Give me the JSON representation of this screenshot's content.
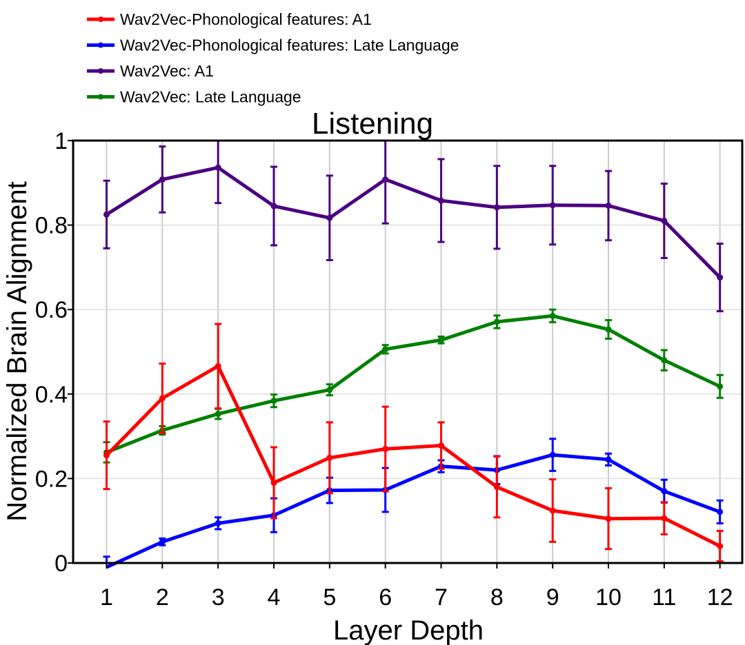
{
  "chart_data": {
    "type": "line",
    "title": "Listening",
    "xlabel": "Layer Depth",
    "ylabel": "Normalized Brain Alignment",
    "x": [
      1,
      2,
      3,
      4,
      5,
      6,
      7,
      8,
      9,
      10,
      11,
      12
    ],
    "xticks": [
      "1",
      "2",
      "3",
      "4",
      "5",
      "6",
      "7",
      "8",
      "9",
      "10",
      "11",
      "12"
    ],
    "yticks": [
      "0",
      "0.2",
      "0.4",
      "0.6",
      "0.8",
      "1"
    ],
    "ylim": [
      0,
      1
    ],
    "xlim": [
      0.4,
      12.4
    ],
    "grid": "vertical",
    "legend_position": "top-left",
    "series": [
      {
        "name": "Wav2Vec-Phonological features: A1",
        "color": "#ff0000",
        "values": [
          0.255,
          0.39,
          0.466,
          0.19,
          0.249,
          0.27,
          0.278,
          0.18,
          0.124,
          0.105,
          0.106,
          0.04
        ],
        "errors": [
          0.08,
          0.082,
          0.1,
          0.084,
          0.084,
          0.1,
          0.055,
          0.072,
          0.074,
          0.072,
          0.038,
          0.036
        ]
      },
      {
        "name": "Wav2Vec-Phonological features: Late Language",
        "color": "#0000ff",
        "values": [
          -0.01,
          0.05,
          0.094,
          0.113,
          0.172,
          0.173,
          0.229,
          0.22,
          0.256,
          0.245,
          0.17,
          0.121
        ],
        "errors": [
          0.025,
          0.008,
          0.014,
          0.04,
          0.03,
          0.052,
          0.014,
          0.033,
          0.038,
          0.014,
          0.027,
          0.027
        ]
      },
      {
        "name": "Wav2Vec: A1",
        "color": "#4b0082",
        "values": [
          0.825,
          0.908,
          0.936,
          0.845,
          0.817,
          0.908,
          0.858,
          0.842,
          0.847,
          0.846,
          0.81,
          0.676
        ],
        "errors": [
          0.08,
          0.078,
          0.084,
          0.093,
          0.1,
          0.104,
          0.098,
          0.098,
          0.093,
          0.082,
          0.088,
          0.08
        ]
      },
      {
        "name": "Wav2Vec: Late Language",
        "color": "#008000",
        "values": [
          0.262,
          0.314,
          0.353,
          0.384,
          0.41,
          0.506,
          0.528,
          0.571,
          0.585,
          0.553,
          0.48,
          0.418
        ],
        "errors": [
          0.024,
          0.01,
          0.012,
          0.015,
          0.013,
          0.01,
          0.008,
          0.015,
          0.015,
          0.022,
          0.024,
          0.027
        ]
      }
    ]
  }
}
